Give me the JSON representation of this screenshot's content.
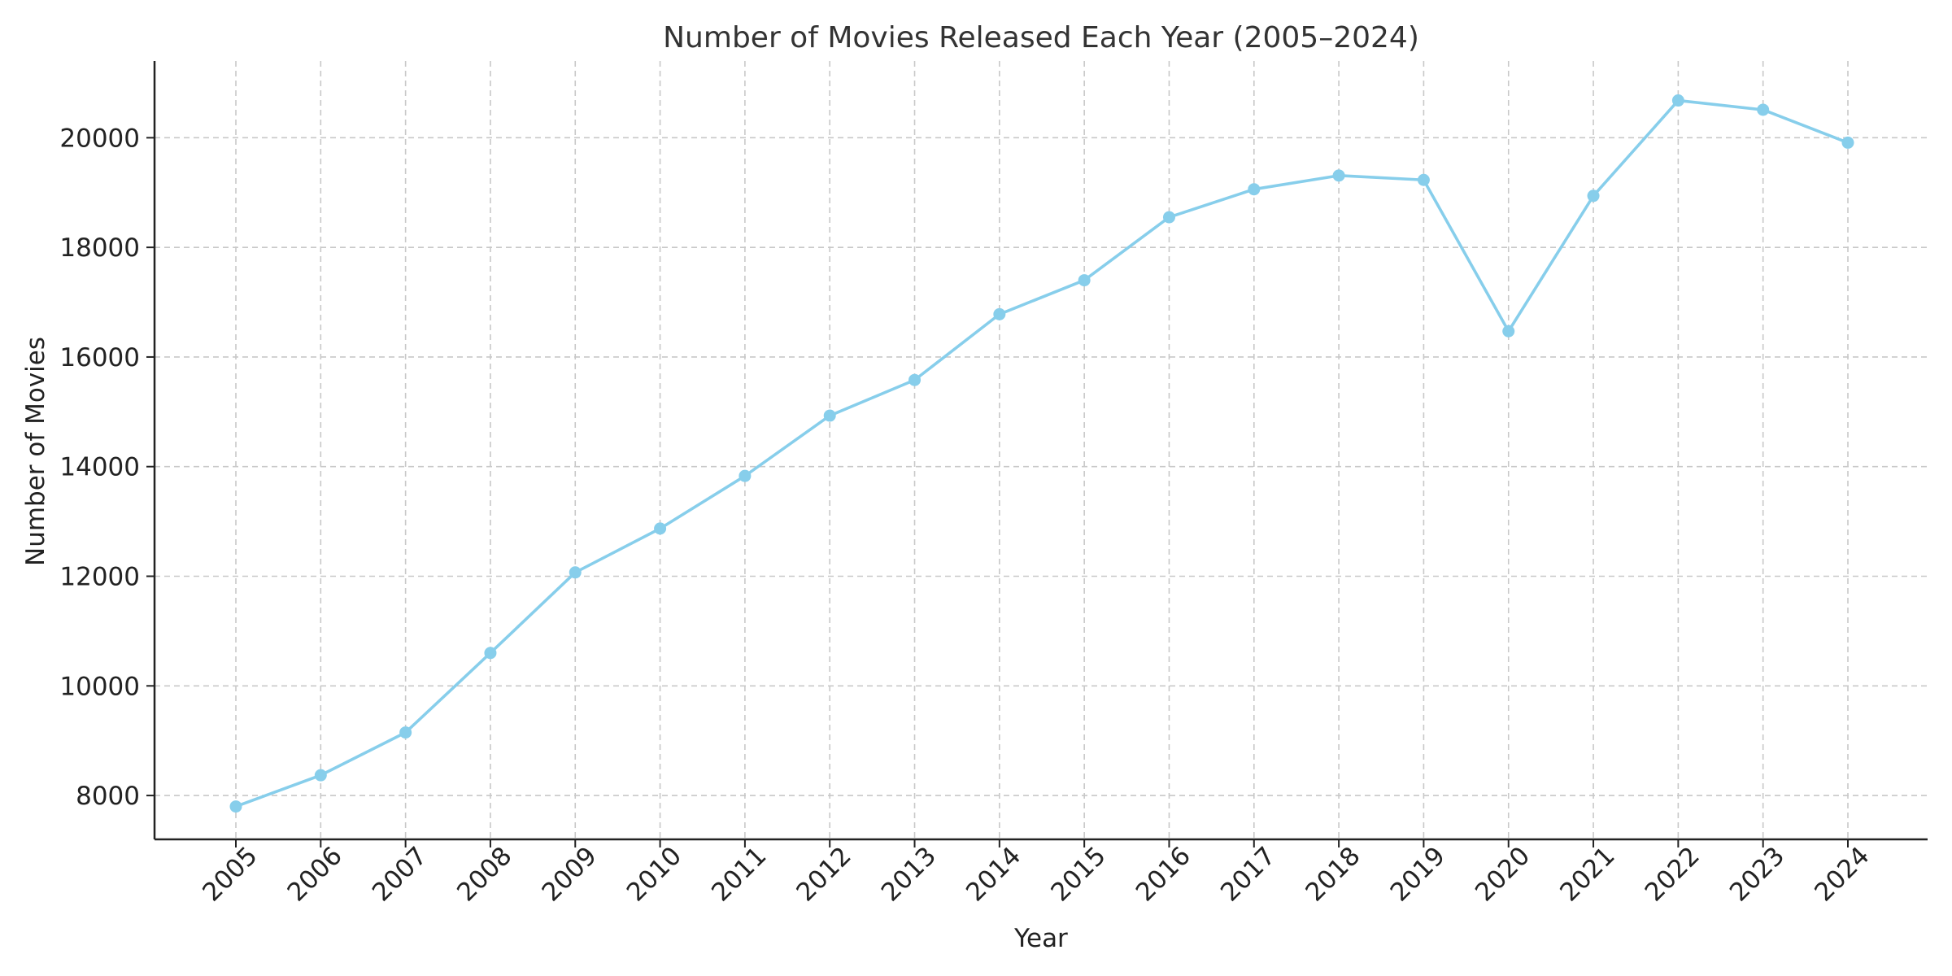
{
  "chart_data": {
    "type": "line",
    "title": "Number of Movies Released Each Year (2005–2024)",
    "xlabel": "Year",
    "ylabel": "Number of Movies",
    "x": [
      2005,
      2006,
      2007,
      2008,
      2009,
      2010,
      2011,
      2012,
      2013,
      2014,
      2015,
      2016,
      2017,
      2018,
      2019,
      2020,
      2021,
      2022,
      2023,
      2024
    ],
    "series": [
      {
        "values": [
          7800,
          8370,
          9150,
          10600,
          12070,
          12870,
          13830,
          14930,
          15580,
          16780,
          17400,
          18550,
          19060,
          19310,
          19230,
          16470,
          18940,
          20680,
          20510,
          19910
        ],
        "color": "#87CEEB"
      }
    ],
    "ylim": [
      7200,
      21400
    ],
    "yticks": [
      8000,
      10000,
      12000,
      14000,
      16000,
      18000,
      20000
    ],
    "grid": true,
    "markers": true
  }
}
